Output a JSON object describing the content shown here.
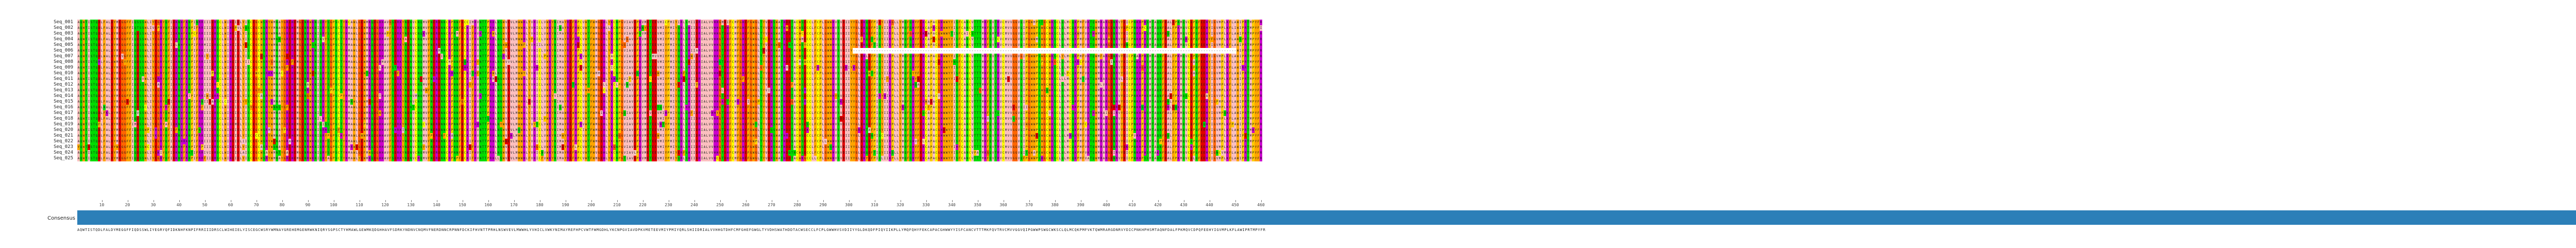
{
  "colors": {
    "A": "#fbbfbf",
    "V": "#fbbfbf",
    "L": "#fbbfbf",
    "I": "#fbbfbf",
    "M": "#fbbfbf",
    "F": "#ffa500",
    "W": "#ffa500",
    "Y": "#ffa500",
    "K": "#cc00cc",
    "R": "#cc00cc",
    "H": "#cc00cc",
    "D": "#e00000",
    "E": "#e00000",
    "S": "#00dd00",
    "T": "#00dd00",
    "N": "#00dd00",
    "Q": "#00dd00",
    "G": "#ff6600",
    "P": "#ffcc00",
    "C": "#ffff00",
    "-": "#ffffff",
    "consensus_bar": "#2c7fb8"
  },
  "alignment": {
    "rows": [
      {
        "name": "Seq_001",
        "end": "462"
      },
      {
        "name": "Seq_002",
        "end": "462"
      },
      {
        "name": "Seq_003",
        "end": "462"
      },
      {
        "name": "Seq_004",
        "end": "462"
      },
      {
        "name": "Seq_005",
        "end": "462"
      },
      {
        "name": "Seq_006",
        "end": "462"
      },
      {
        "name": "Seq_007",
        "end": "462"
      },
      {
        "name": "Seq_008",
        "end": "462"
      },
      {
        "name": "Seq_009",
        "end": "462"
      },
      {
        "name": "Seq_010",
        "end": "462"
      },
      {
        "name": "Seq_011",
        "end": "462"
      },
      {
        "name": "Seq_012",
        "end": "462"
      },
      {
        "name": "Seq_013",
        "end": "462"
      },
      {
        "name": "Seq_014",
        "end": "462"
      },
      {
        "name": "Seq_015",
        "end": "462"
      },
      {
        "name": "Seq_016",
        "end": "462"
      },
      {
        "name": "Seq_017",
        "end": "462"
      },
      {
        "name": "Seq_018",
        "end": "462"
      },
      {
        "name": "Seq_019",
        "end": "462"
      },
      {
        "name": "Seq_020",
        "end": "462"
      },
      {
        "name": "Seq_021",
        "end": "462"
      },
      {
        "name": "Seq_022",
        "end": "462"
      },
      {
        "name": "Seq_023",
        "end": "462"
      },
      {
        "name": "Seq_024",
        "end": "462"
      },
      {
        "name": "Seq_025",
        "end": "462"
      }
    ],
    "consensus_label": "Consensus",
    "ruler_step": 10,
    "ruler_max": 460
  }
}
